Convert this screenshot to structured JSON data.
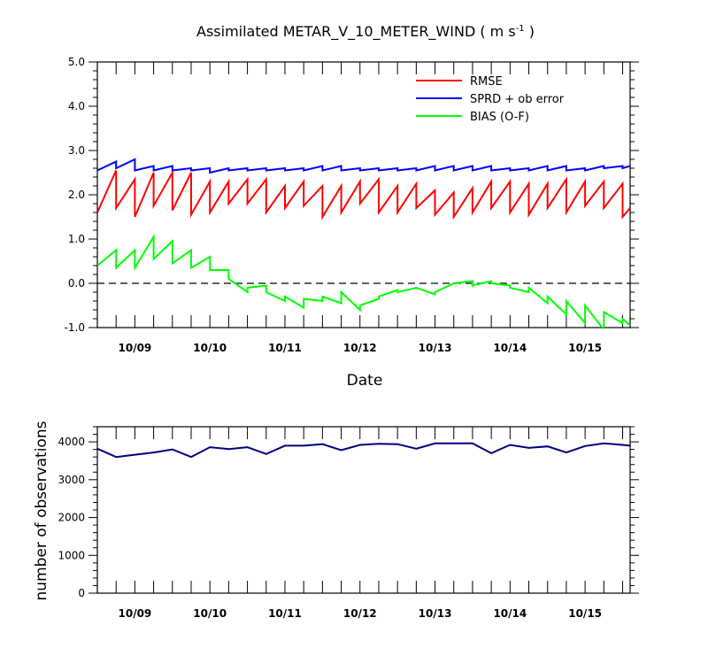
{
  "chart_data": [
    {
      "type": "line",
      "title": "Assimilated METAR_V_10_METER_WIND ( m s",
      "title_superscript": "-1",
      "title_close": " )",
      "xlabel": "Date",
      "ylabel": "",
      "xlim": [
        0,
        7.1
      ],
      "ylim": [
        -1.0,
        5.0
      ],
      "x_ticks": [
        {
          "x": 0.5,
          "label": "10/09"
        },
        {
          "x": 1.5,
          "label": "10/10"
        },
        {
          "x": 2.5,
          "label": "10/11"
        },
        {
          "x": 3.5,
          "label": "10/12"
        },
        {
          "x": 4.5,
          "label": "10/13"
        },
        {
          "x": 5.5,
          "label": "10/14"
        },
        {
          "x": 6.5,
          "label": "10/15"
        }
      ],
      "y_ticks": [
        {
          "y": 5.0,
          "label": "5.0"
        },
        {
          "y": 4.0,
          "label": "4.0"
        },
        {
          "y": 3.0,
          "label": "3.0"
        },
        {
          "y": 2.0,
          "label": "2.0"
        },
        {
          "y": 1.0,
          "label": "1.0"
        },
        {
          "y": 0.0,
          "label": "0.0"
        },
        {
          "y": -1.0,
          "label": "-1.0"
        }
      ],
      "reference_line": {
        "y": 0.0,
        "style": "dashed"
      },
      "legend_position": "top-right",
      "series": [
        {
          "name": "RMSE",
          "color": "#ff0000",
          "x": [
            0,
            0.25,
            0.25,
            0.5,
            0.5,
            0.75,
            0.75,
            1.0,
            1.0,
            1.25,
            1.25,
            1.5,
            1.5,
            1.75,
            1.75,
            2.0,
            2.0,
            2.25,
            2.25,
            2.5,
            2.5,
            2.75,
            2.75,
            3.0,
            3.0,
            3.25,
            3.25,
            3.5,
            3.5,
            3.75,
            3.75,
            4.0,
            4.0,
            4.25,
            4.25,
            4.5,
            4.5,
            4.75,
            4.75,
            5.0,
            5.0,
            5.25,
            5.25,
            5.5,
            5.5,
            5.75,
            5.75,
            6.0,
            6.0,
            6.25,
            6.25,
            6.5,
            6.5,
            6.75,
            6.75,
            7.0,
            7.0,
            7.1
          ],
          "y": [
            1.6,
            2.55,
            1.7,
            2.35,
            1.5,
            2.5,
            1.75,
            2.5,
            1.65,
            2.5,
            1.55,
            2.3,
            1.6,
            2.3,
            1.8,
            2.35,
            1.8,
            2.35,
            1.6,
            2.2,
            1.7,
            2.3,
            1.75,
            2.2,
            1.5,
            2.2,
            1.6,
            2.3,
            1.8,
            2.35,
            1.6,
            2.2,
            1.6,
            2.25,
            1.7,
            2.1,
            1.55,
            2.05,
            1.5,
            2.15,
            1.6,
            2.3,
            1.7,
            2.3,
            1.6,
            2.25,
            1.55,
            2.25,
            1.7,
            2.35,
            1.6,
            2.3,
            1.75,
            2.3,
            1.7,
            2.25,
            1.5,
            1.7
          ]
        },
        {
          "name": "SPRD + ob error",
          "color": "#0000ff",
          "x": [
            0,
            0.25,
            0.25,
            0.5,
            0.5,
            0.75,
            0.75,
            1.0,
            1.0,
            1.25,
            1.25,
            1.5,
            1.5,
            1.75,
            1.75,
            2.0,
            2.0,
            2.25,
            2.25,
            2.5,
            2.5,
            2.75,
            2.75,
            3.0,
            3.0,
            3.25,
            3.25,
            3.5,
            3.5,
            3.75,
            3.75,
            4.0,
            4.0,
            4.25,
            4.25,
            4.5,
            4.5,
            4.75,
            4.75,
            5.0,
            5.0,
            5.25,
            5.25,
            5.5,
            5.5,
            5.75,
            5.75,
            6.0,
            6.0,
            6.25,
            6.25,
            6.5,
            6.5,
            6.75,
            6.75,
            7.0,
            7.0,
            7.1
          ],
          "y": [
            2.55,
            2.75,
            2.6,
            2.8,
            2.55,
            2.65,
            2.55,
            2.65,
            2.55,
            2.6,
            2.55,
            2.6,
            2.5,
            2.6,
            2.55,
            2.6,
            2.55,
            2.6,
            2.55,
            2.6,
            2.55,
            2.6,
            2.55,
            2.65,
            2.55,
            2.65,
            2.55,
            2.6,
            2.55,
            2.6,
            2.55,
            2.6,
            2.55,
            2.6,
            2.55,
            2.65,
            2.55,
            2.65,
            2.55,
            2.65,
            2.55,
            2.65,
            2.55,
            2.6,
            2.55,
            2.6,
            2.55,
            2.65,
            2.55,
            2.65,
            2.55,
            2.6,
            2.55,
            2.65,
            2.6,
            2.65,
            2.6,
            2.65
          ]
        },
        {
          "name": "BIAS (O-F)",
          "color": "#00ff00",
          "x": [
            0,
            0.25,
            0.25,
            0.5,
            0.5,
            0.75,
            0.75,
            1.0,
            1.0,
            1.25,
            1.25,
            1.5,
            1.5,
            1.75,
            1.75,
            2.0,
            2.0,
            2.25,
            2.25,
            2.5,
            2.5,
            2.75,
            2.75,
            3.0,
            3.0,
            3.25,
            3.25,
            3.5,
            3.5,
            3.75,
            3.75,
            4.0,
            4.0,
            4.25,
            4.25,
            4.5,
            4.5,
            4.75,
            4.75,
            5.0,
            5.0,
            5.25,
            5.25,
            5.5,
            5.5,
            5.75,
            5.75,
            6.0,
            6.0,
            6.25,
            6.25,
            6.5,
            6.5,
            6.75,
            6.75,
            7.0,
            7.0,
            7.1
          ],
          "y": [
            0.4,
            0.75,
            0.35,
            0.75,
            0.35,
            1.05,
            0.55,
            0.95,
            0.45,
            0.75,
            0.35,
            0.6,
            0.3,
            0.3,
            0.1,
            -0.2,
            -0.1,
            -0.05,
            -0.2,
            -0.4,
            -0.3,
            -0.55,
            -0.35,
            -0.4,
            -0.3,
            -0.45,
            -0.2,
            -0.6,
            -0.5,
            -0.35,
            -0.3,
            -0.15,
            -0.2,
            -0.1,
            -0.1,
            -0.25,
            -0.2,
            0.0,
            0.0,
            0.05,
            -0.05,
            0.05,
            0.0,
            -0.05,
            -0.1,
            -0.2,
            -0.1,
            -0.45,
            -0.3,
            -0.7,
            -0.4,
            -0.9,
            -0.5,
            -1.05,
            -0.65,
            -0.9,
            -0.8,
            -0.95
          ]
        }
      ]
    },
    {
      "type": "line",
      "title": "",
      "xlabel": "",
      "ylabel": "number of observations",
      "xlim": [
        0,
        7.1
      ],
      "ylim": [
        0,
        4400
      ],
      "x_ticks": [
        {
          "x": 0.5,
          "label": "10/09"
        },
        {
          "x": 1.5,
          "label": "10/10"
        },
        {
          "x": 2.5,
          "label": "10/11"
        },
        {
          "x": 3.5,
          "label": "10/12"
        },
        {
          "x": 4.5,
          "label": "10/13"
        },
        {
          "x": 5.5,
          "label": "10/14"
        },
        {
          "x": 6.5,
          "label": "10/15"
        }
      ],
      "y_ticks": [
        {
          "y": 4000,
          "label": "4000"
        },
        {
          "y": 3000,
          "label": "3000"
        },
        {
          "y": 2000,
          "label": "2000"
        },
        {
          "y": 1000,
          "label": "1000"
        },
        {
          "y": 0,
          "label": "0"
        }
      ],
      "series": [
        {
          "color": "#000080",
          "x": [
            0,
            0.25,
            0.5,
            0.75,
            1.0,
            1.25,
            1.5,
            1.75,
            2.0,
            2.25,
            2.5,
            2.75,
            3.0,
            3.25,
            3.5,
            3.75,
            4.0,
            4.25,
            4.5,
            4.75,
            5.0,
            5.25,
            5.5,
            5.75,
            6.0,
            6.25,
            6.5,
            6.75,
            7.0,
            7.1
          ],
          "y": [
            3820,
            3600,
            3660,
            3720,
            3800,
            3600,
            3860,
            3810,
            3860,
            3680,
            3900,
            3900,
            3940,
            3780,
            3920,
            3950,
            3940,
            3820,
            3960,
            3960,
            3960,
            3700,
            3920,
            3840,
            3880,
            3720,
            3890,
            3960,
            3920,
            3900
          ]
        }
      ]
    }
  ]
}
